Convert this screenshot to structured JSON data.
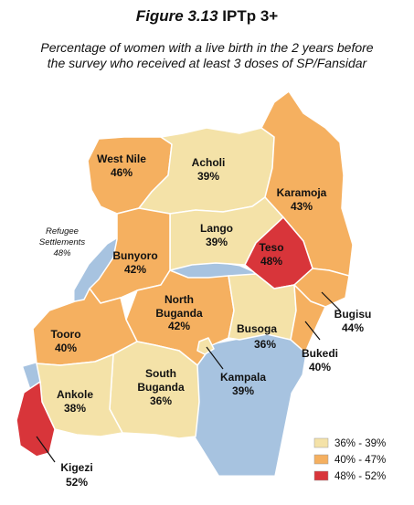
{
  "title": {
    "figure": "Figure 3.13",
    "name": "IPTp 3+"
  },
  "subtitle": "Percentage of women with a live birth in the 2 years before the survey who received at least 3 doses of SP/Fansidar",
  "colors": {
    "low": "#f4e2a8",
    "mid": "#f5b060",
    "high": "#d8353a",
    "water": "#a7c3e0",
    "border": "#ffffff"
  },
  "regions": [
    {
      "name": "West Nile",
      "value": "46%",
      "class": "mid"
    },
    {
      "name": "Acholi",
      "value": "39%",
      "class": "low"
    },
    {
      "name": "Karamoja",
      "value": "43%",
      "class": "mid"
    },
    {
      "name": "Lango",
      "value": "39%",
      "class": "low"
    },
    {
      "name": "Teso",
      "value": "48%",
      "class": "high"
    },
    {
      "name": "Bunyoro",
      "value": "42%",
      "class": "mid"
    },
    {
      "name": "North Buganda",
      "value": "42%",
      "class": "mid"
    },
    {
      "name": "Bugisu",
      "value": "44%",
      "class": "mid"
    },
    {
      "name": "Busoga",
      "value": "36%",
      "class": "low"
    },
    {
      "name": "Tooro",
      "value": "40%",
      "class": "mid"
    },
    {
      "name": "Bukedi",
      "value": "40%",
      "class": "mid"
    },
    {
      "name": "South Buganda",
      "value": "36%",
      "class": "low"
    },
    {
      "name": "Kampala",
      "value": "39%",
      "class": "low"
    },
    {
      "name": "Ankole",
      "value": "38%",
      "class": "low"
    },
    {
      "name": "Kigezi",
      "value": "52%",
      "class": "high"
    }
  ],
  "refugee": {
    "line1": "Refugee",
    "line2": "Settlements",
    "value": "48%"
  },
  "legend": [
    {
      "label": "36% - 39%",
      "class": "low"
    },
    {
      "label": "40% - 47%",
      "class": "mid"
    },
    {
      "label": "48% - 52%",
      "class": "high"
    }
  ]
}
